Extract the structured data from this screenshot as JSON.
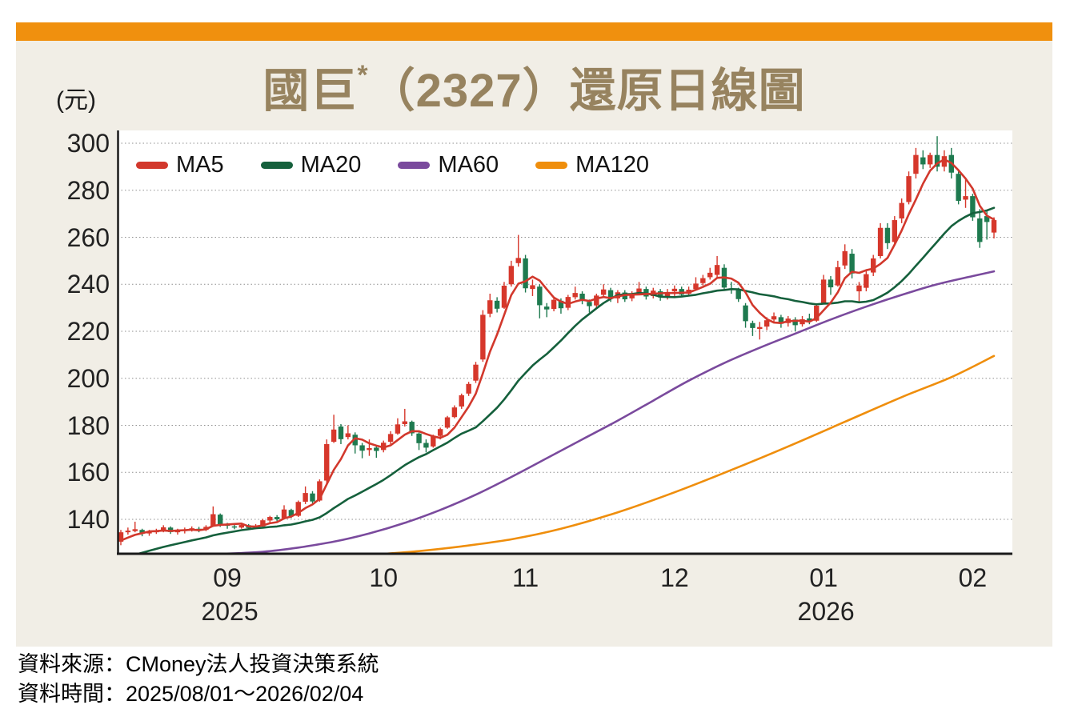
{
  "page": {
    "title_main": "國巨",
    "title_sup": "*",
    "title_rest": "（2327）還原日線圖",
    "y_unit_label": "(元)",
    "footer_source": "資料來源：CMoney法人投資決策系統",
    "footer_time": "資料時間：2025/08/01～2026/02/04"
  },
  "legend": {
    "items": [
      {
        "label": "MA5",
        "color": "#d2382c"
      },
      {
        "label": "MA20",
        "color": "#15603c"
      },
      {
        "label": "MA60",
        "color": "#7a4a9d"
      },
      {
        "label": "MA120",
        "color": "#ef8e0c"
      }
    ]
  },
  "chart_data": {
    "type": "candlestick",
    "title": "國巨*（2327）還原日線圖",
    "y_unit": "元",
    "date_range": "2025/08/01～2026/02/04",
    "ylim": [
      125,
      306
    ],
    "y_ticks": [
      300,
      280,
      260,
      240,
      220,
      200,
      180,
      160,
      140
    ],
    "x_ticks": [
      {
        "label": "09",
        "index": 15,
        "year": "2025"
      },
      {
        "label": "10",
        "index": 37
      },
      {
        "label": "11",
        "index": 57
      },
      {
        "label": "12",
        "index": 78
      },
      {
        "label": "01",
        "index": 99,
        "year": "2026"
      },
      {
        "label": "02",
        "index": 120
      }
    ],
    "colors": {
      "up": "#d6372b",
      "down": "#1e7a4f",
      "ma5": "#d2382c",
      "ma20": "#15603c",
      "ma60": "#7a4a9d",
      "ma120": "#ef8e0c",
      "grid": "#8f8f8f",
      "axis": "#1a1a1a",
      "plot_bg": "#ffffff",
      "panel_bg": "#f1eee6",
      "topbar": "#f0900e",
      "title": "#97835f"
    },
    "ohlc": [
      [
        130.5,
        135.5,
        129,
        134.5
      ],
      [
        134.5,
        136.5,
        133.5,
        135.2
      ],
      [
        135,
        139,
        134.5,
        135.8
      ],
      [
        135.5,
        136,
        132.8,
        134
      ],
      [
        134,
        135.5,
        133,
        134.8
      ],
      [
        134.5,
        136,
        133.8,
        135.2
      ],
      [
        135,
        137.5,
        134.5,
        136.6
      ],
      [
        136.5,
        137,
        133.8,
        134.6
      ],
      [
        134.5,
        136,
        133.5,
        135.1
      ],
      [
        135,
        136.5,
        134,
        135.6
      ],
      [
        135.5,
        137,
        134.8,
        136.2
      ],
      [
        136,
        136.8,
        134.5,
        135.4
      ],
      [
        135.5,
        137.5,
        135,
        136.8
      ],
      [
        137,
        145.5,
        136.8,
        142.2
      ],
      [
        142,
        142.5,
        136.8,
        137.6
      ],
      [
        137.5,
        138.5,
        136,
        137.1
      ],
      [
        137,
        138,
        135.8,
        136.5
      ],
      [
        136.5,
        138.2,
        136,
        137.6
      ],
      [
        137.5,
        138,
        135.5,
        136.3
      ],
      [
        136.5,
        138,
        135.8,
        137.2
      ],
      [
        137,
        140.2,
        136.8,
        139.6
      ],
      [
        139.5,
        141.5,
        138.5,
        141
      ],
      [
        141,
        141.8,
        139.2,
        140
      ],
      [
        140.5,
        146,
        140,
        144.2
      ],
      [
        144,
        144.5,
        140.5,
        141.2
      ],
      [
        141.5,
        148,
        141,
        147.4
      ],
      [
        147.5,
        154,
        146.5,
        151.2
      ],
      [
        151,
        152,
        146.8,
        147.6
      ],
      [
        148,
        157,
        147.5,
        156.2
      ],
      [
        156.5,
        174,
        155.5,
        172
      ],
      [
        173,
        184.5,
        172.5,
        178.2
      ],
      [
        179.5,
        180.5,
        172,
        174.1
      ],
      [
        175,
        180,
        174,
        176.6
      ],
      [
        176,
        177,
        168,
        171.5
      ],
      [
        171.5,
        172.5,
        166,
        169.2
      ],
      [
        169.5,
        174,
        167,
        170.3
      ],
      [
        170.5,
        171.5,
        166.2,
        169.1
      ],
      [
        169.5,
        173.5,
        168.5,
        172.6
      ],
      [
        173,
        177.5,
        172,
        176.3
      ],
      [
        176.5,
        183,
        176,
        180.4
      ],
      [
        180.5,
        187,
        179.5,
        181.7
      ],
      [
        181.5,
        182,
        175.5,
        176.6
      ],
      [
        176.5,
        177,
        169.5,
        172.4
      ],
      [
        172.5,
        174,
        168.5,
        170.5
      ],
      [
        171,
        176,
        170.5,
        175.3
      ],
      [
        175.5,
        179,
        174,
        178.4
      ],
      [
        179,
        184,
        178.5,
        183.4
      ],
      [
        183.5,
        188.5,
        183,
        187.6
      ],
      [
        188,
        193.5,
        187,
        192.8
      ],
      [
        193.5,
        198.5,
        192.5,
        197.6
      ],
      [
        199,
        207,
        198,
        205.8
      ],
      [
        208,
        229,
        207,
        227
      ],
      [
        227.5,
        236,
        226,
        233.2
      ],
      [
        233,
        234.5,
        228,
        229.6
      ],
      [
        230,
        241,
        229.5,
        239.4
      ],
      [
        240,
        250,
        239,
        247.8
      ],
      [
        249,
        261,
        247.5,
        251.2
      ],
      [
        251,
        252.5,
        236.5,
        238.3
      ],
      [
        238,
        242,
        235,
        239.6
      ],
      [
        239,
        240,
        225.5,
        231.1
      ],
      [
        230.5,
        232,
        226,
        229.3
      ],
      [
        229.5,
        234.5,
        228.5,
        233.4
      ],
      [
        233,
        234,
        227.5,
        229.8
      ],
      [
        230,
        235.5,
        229,
        234.6
      ],
      [
        234.5,
        239,
        233.5,
        236.3
      ],
      [
        236,
        237,
        231.5,
        232.9
      ],
      [
        232.5,
        233.5,
        228,
        230.7
      ],
      [
        231,
        236,
        230,
        235.2
      ],
      [
        235.5,
        240,
        234.5,
        237.8
      ],
      [
        237.5,
        238.5,
        232.5,
        233.9
      ],
      [
        234,
        237.5,
        232,
        236.6
      ],
      [
        236.5,
        237.5,
        232.5,
        233.6
      ],
      [
        234,
        237,
        232.8,
        236.1
      ],
      [
        236.5,
        241,
        235.5,
        238.2
      ],
      [
        238,
        239,
        233.5,
        234.8
      ],
      [
        235,
        238.5,
        234,
        237.3
      ],
      [
        237,
        238,
        233,
        234.4
      ],
      [
        234.5,
        238,
        233.5,
        236.7
      ],
      [
        237,
        239.5,
        235,
        238.1
      ],
      [
        238,
        239,
        234.5,
        235.6
      ],
      [
        236,
        239,
        235,
        237.7
      ],
      [
        238,
        243,
        237.5,
        240.3
      ],
      [
        240.5,
        244,
        239.5,
        242.6
      ],
      [
        243,
        247,
        242,
        244.9
      ],
      [
        244,
        252,
        243,
        248.2
      ],
      [
        247,
        248.5,
        237.5,
        238.6
      ],
      [
        238,
        241,
        236,
        237.9
      ],
      [
        237.5,
        238.5,
        232.5,
        233.7
      ],
      [
        231,
        232,
        221.5,
        224.3
      ],
      [
        223.5,
        224.5,
        218,
        221.4
      ],
      [
        221,
        224,
        216.5,
        221.8
      ],
      [
        222,
        226,
        220.5,
        224.7
      ],
      [
        225,
        228,
        223.5,
        226.4
      ],
      [
        226,
        227,
        221.5,
        223.2
      ],
      [
        223.5,
        226.5,
        222,
        225.4
      ],
      [
        225,
        226,
        220,
        222.6
      ],
      [
        223,
        226.5,
        222,
        225.1
      ],
      [
        225.5,
        227.5,
        223,
        224.2
      ],
      [
        224.5,
        231.5,
        224,
        230.9
      ],
      [
        232,
        244,
        231.5,
        242
      ],
      [
        242,
        243.5,
        235.5,
        238.7
      ],
      [
        239.5,
        250,
        239,
        247.3
      ],
      [
        248,
        257,
        246.5,
        254.1
      ],
      [
        253,
        255,
        242.5,
        244.6
      ],
      [
        237,
        241,
        232,
        239.5
      ],
      [
        238.5,
        246,
        237,
        244.3
      ],
      [
        245,
        252.5,
        243.5,
        251
      ],
      [
        252,
        266,
        251,
        264
      ],
      [
        264,
        266,
        255,
        257.5
      ],
      [
        258,
        269,
        256.5,
        267.3
      ],
      [
        268,
        276.5,
        266,
        274.6
      ],
      [
        275,
        288,
        274,
        286
      ],
      [
        287,
        298,
        285,
        295
      ],
      [
        294,
        297,
        289,
        291
      ],
      [
        291,
        296,
        289.5,
        295
      ],
      [
        295,
        303,
        288,
        290
      ],
      [
        290,
        297,
        288,
        294.5
      ],
      [
        295,
        298,
        285,
        287.5
      ],
      [
        287,
        288,
        274,
        275.5
      ],
      [
        276,
        284.5,
        272.5,
        277.5
      ],
      [
        277.5,
        278.5,
        267,
        268.5
      ],
      [
        268,
        272,
        255.5,
        258
      ],
      [
        269,
        271,
        259,
        266.5
      ],
      [
        262,
        268.5,
        259.5,
        267.3
      ]
    ],
    "moving_averages": {
      "ma5": {
        "color": "#d2382c",
        "computed_from_close": true,
        "seed_closes": [
          129,
          130,
          130.5,
          131
        ]
      },
      "ma20": {
        "color": "#15603c",
        "computed_from_close": true,
        "seed_closes": [
          116,
          117,
          118,
          118.5,
          119,
          120,
          120.5,
          121,
          122,
          122.5,
          123,
          124,
          124.5,
          125,
          126,
          126.5,
          127,
          128,
          129
        ]
      },
      "ma60": {
        "color": "#7a4a9d",
        "points": [
          [
            14,
            125.3
          ],
          [
            20,
            126.2
          ],
          [
            25,
            128
          ],
          [
            30,
            130.5
          ],
          [
            35,
            134
          ],
          [
            40,
            138.5
          ],
          [
            45,
            144
          ],
          [
            50,
            150.5
          ],
          [
            55,
            158
          ],
          [
            60,
            166
          ],
          [
            65,
            174
          ],
          [
            70,
            182
          ],
          [
            75,
            190.5
          ],
          [
            80,
            199
          ],
          [
            85,
            206.5
          ],
          [
            90,
            213
          ],
          [
            95,
            219
          ],
          [
            100,
            225
          ],
          [
            105,
            230.5
          ],
          [
            110,
            235.5
          ],
          [
            115,
            240
          ],
          [
            120,
            243.5
          ],
          [
            123,
            245.5
          ]
        ]
      },
      "ma120": {
        "color": "#ef8e0c",
        "points": [
          [
            37,
            125.3
          ],
          [
            42,
            126.5
          ],
          [
            48,
            128.5
          ],
          [
            55,
            131.5
          ],
          [
            62,
            136
          ],
          [
            70,
            143
          ],
          [
            78,
            151.5
          ],
          [
            86,
            161
          ],
          [
            94,
            171
          ],
          [
            102,
            181.5
          ],
          [
            110,
            192
          ],
          [
            117,
            200.5
          ],
          [
            123,
            209.5
          ]
        ]
      }
    }
  }
}
